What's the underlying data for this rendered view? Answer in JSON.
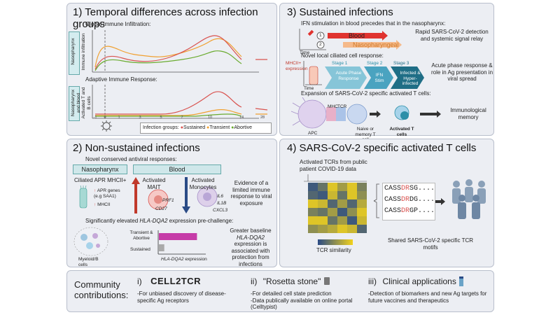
{
  "panel1": {
    "title": "1) Temporal differences across infection groups",
    "global_label": "Global Immune Infiltration:",
    "global_side": "Nasopharynx",
    "global_ylabel": "Immune infiltration",
    "adaptive_label": "Adaptive Immune Response:",
    "adaptive_side": "Nasopharynx and blood",
    "adaptive_ylabel": "Activated T and B cells",
    "ticks": [
      "-1",
      "0",
      "1",
      "3",
      "5",
      "7",
      "10",
      "14",
      "28"
    ],
    "legend_title": "Infection groups:",
    "legend": [
      {
        "name": "Sustained",
        "color": "#d9534f"
      },
      {
        "name": "Transient",
        "color": "#f0a030"
      },
      {
        "name": "Abortive",
        "color": "#6aab2f"
      }
    ]
  },
  "panel2": {
    "title": "2) Non-sustained infections",
    "subtitle": "Novel conserved antiviral responses:",
    "naso_tab": "Nasopharynx",
    "blood_tab": "Blood",
    "ciliated": "Ciliated APR MHCII+",
    "apr_genes": "APR genes (e.g SAA1)",
    "mhcii": "MHCII",
    "mait": "Activated MAIT",
    "mait_genes": [
      "PRF1",
      "CD27"
    ],
    "mono": "Activated Monocytes",
    "mono_genes": [
      "IL6",
      "IL1B",
      "CXCL3"
    ],
    "evidence": "Evidence of a limited immune response to viral exposure",
    "hla_title_a": "Significantly elevated ",
    "hla_title_b": "HLA-DQA2",
    "hla_title_c": " expression pre-challenge:",
    "cells_label": "Myeloid/B cells",
    "bar_labels": [
      "Transient & Abortive",
      "Sustained"
    ],
    "bar_values": [
      0.85,
      0.12
    ],
    "bar_colors": [
      "#c63ca8",
      "#aaaaaa"
    ],
    "xaxis_a": "HLA-DQA2",
    "xaxis_b": " expression",
    "greater_a": "Greater baseline",
    "greater_b": "HLA-DQA2",
    "greater_c": "expression is associated with protection from infections"
  },
  "panel3": {
    "title": "3) Sustained infections",
    "ifn": "IFN stimulation in blood precedes that in the nasopharynx:",
    "blood": "Blood",
    "naso": "Nasopharyngeal",
    "time": "Time",
    "rapid": "Rapid SARS-CoV-2 detection and systemic signal relay",
    "novel": "Novel local ciliated cell response:",
    "mhcii_expr": "MHCII+ expression",
    "stage_labels": [
      "Stage 1",
      "Stage 2",
      "Stage 3"
    ],
    "stages": [
      "Acute Phase Response",
      "IFN Stim",
      "Infected & Hyper-infected"
    ],
    "acute": "Acute phase response & role in Ag presentation in viral spread",
    "expansion": "Expansion of SARS-CoV-2 specific activated T cells:",
    "apc": "APC",
    "mhc": "MHC",
    "tcr": "TCR",
    "naive": "Naive or memory T cell",
    "activated": "Activated T cells",
    "memory": "Immunological memory"
  },
  "panel4": {
    "title": "4) SARS-CoV-2 specific activated T cells",
    "tcr_data": "Activated TCRs from public patient COVID-19 data",
    "sequences": [
      "CASSDRSG",
      "CASSDRDG",
      "CASSDRGP"
    ],
    "seq_suffixes": [
      "....",
      "....",
      "...."
    ],
    "tcr_similarity": "TCR similarity",
    "shared": "Shared SARS-CoV-2 specific TCR motifs"
  },
  "panel5": {
    "title": "Community contributions:",
    "items": [
      {
        "num": "i)",
        "logo": "CELL2TCR",
        "desc": "-For unbiased discovery of disease-specific Ag receptors"
      },
      {
        "num": "ii)",
        "logo": "\"Rosetta stone\"",
        "desc": "-For detailed cell state prediction\n-Data publically available on online portal (Celltypist)"
      },
      {
        "num": "iii)",
        "logo": "Clinical applications",
        "desc": "-Detection of biomarkers and new Ag targets for future vaccines and therapeutics"
      }
    ]
  },
  "colors": {
    "sustained": "#d9534f",
    "transient": "#f0a030",
    "abortive": "#6aab2f",
    "blood": "#e0332f",
    "naso": "#f5b98a",
    "teal": "#2c8fa8",
    "dark_teal": "#1f6e86"
  }
}
